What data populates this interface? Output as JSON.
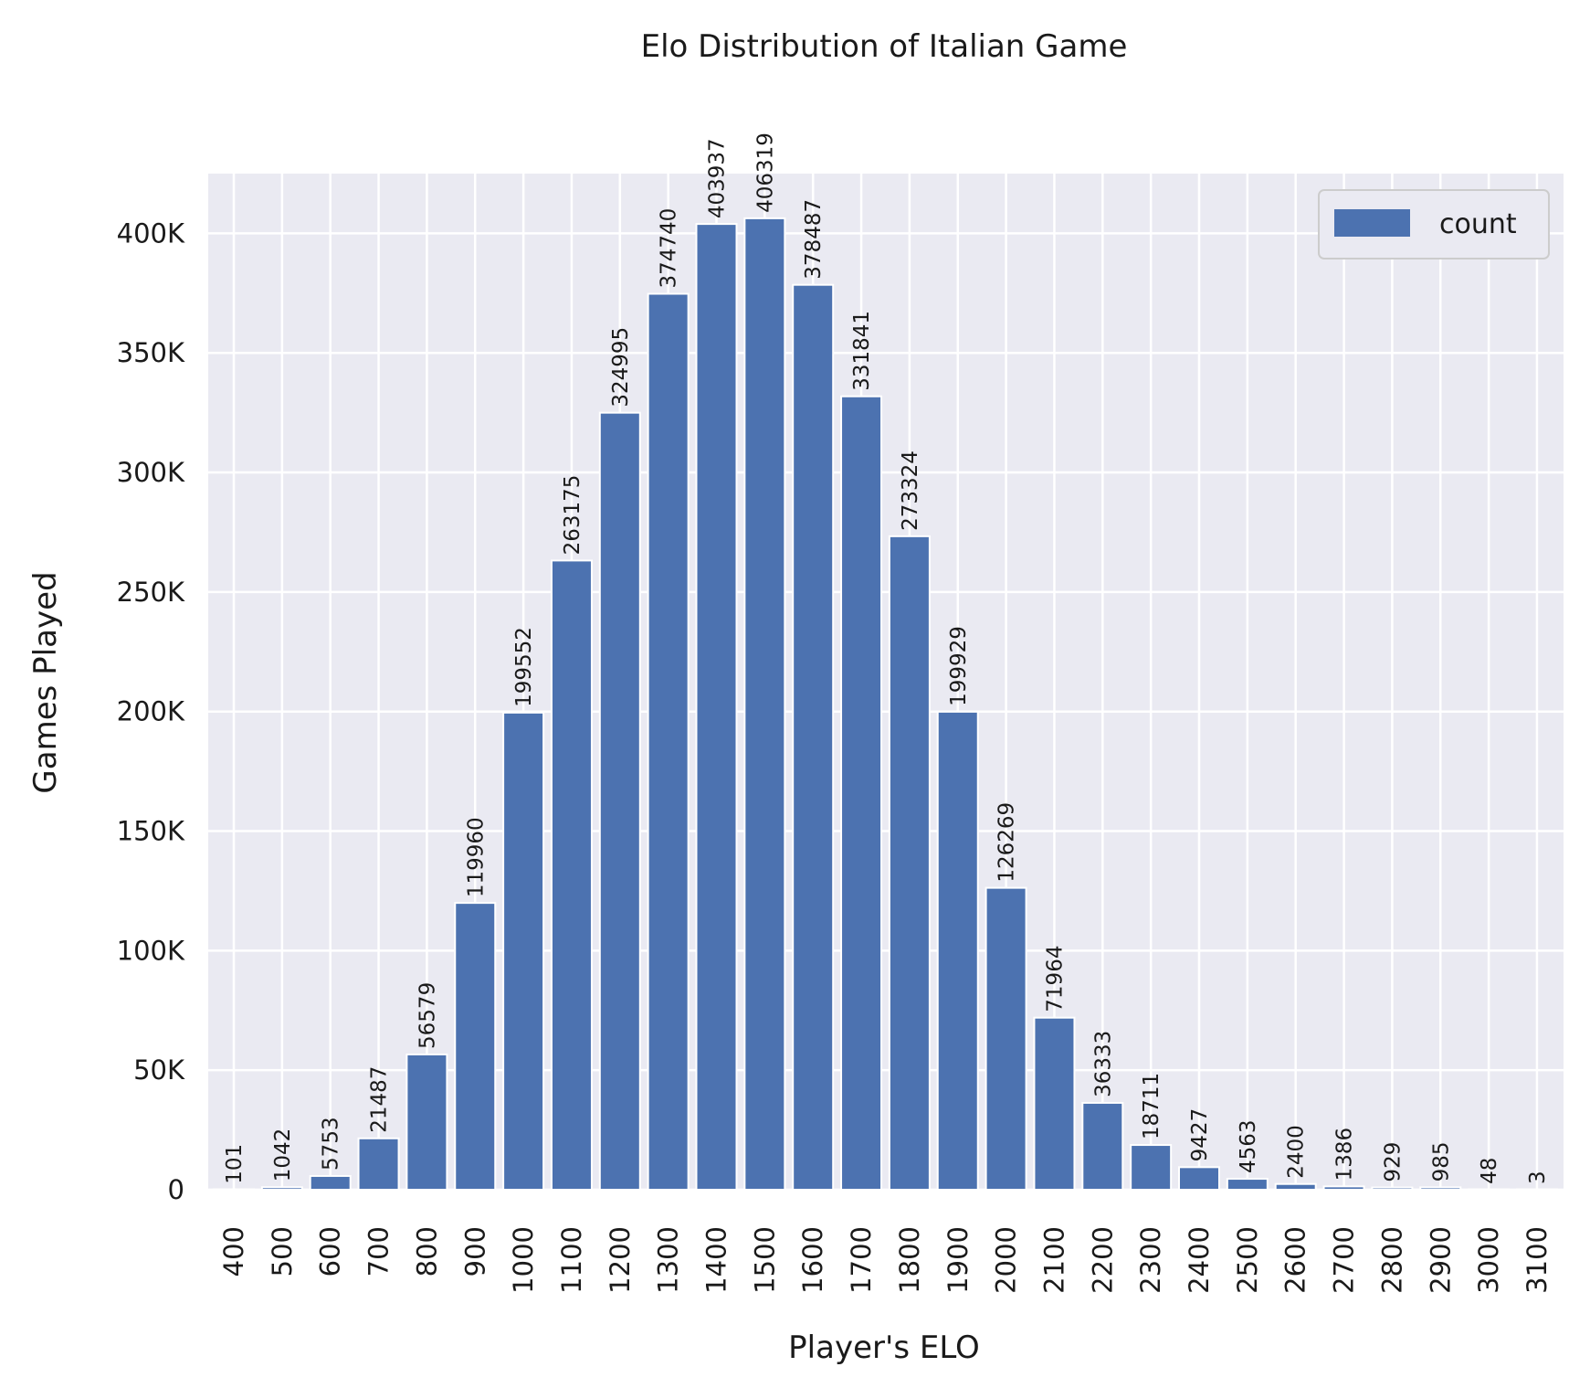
{
  "chart_data": {
    "type": "bar",
    "title": "Elo Distribution of Italian Game",
    "xlabel": "Player's ELO",
    "ylabel": "Games Played",
    "categories": [
      "400",
      "500",
      "600",
      "700",
      "800",
      "900",
      "1000",
      "1100",
      "1200",
      "1300",
      "1400",
      "1500",
      "1600",
      "1700",
      "1800",
      "1900",
      "2000",
      "2100",
      "2200",
      "2300",
      "2400",
      "2500",
      "2600",
      "2700",
      "2800",
      "2900",
      "3000",
      "3100"
    ],
    "series": [
      {
        "name": "count",
        "color": "#4c72b0",
        "values": [
          101,
          1042,
          5753,
          21487,
          56579,
          119960,
          199552,
          263175,
          324995,
          374740,
          403937,
          406319,
          378487,
          331841,
          273324,
          199929,
          126269,
          71964,
          36333,
          18711,
          9427,
          4563,
          2400,
          1386,
          929,
          985,
          48,
          3
        ]
      }
    ],
    "ylim": [
      0,
      425000
    ],
    "yticks": [
      0,
      50000,
      100000,
      150000,
      200000,
      250000,
      300000,
      350000,
      400000
    ],
    "ytick_labels": [
      "0",
      "50K",
      "100K",
      "150K",
      "200K",
      "250K",
      "300K",
      "350K",
      "400K"
    ],
    "grid": true,
    "legend_position": "top-right",
    "background_color": "#eaeaf2",
    "grid_color": "#ffffff"
  }
}
